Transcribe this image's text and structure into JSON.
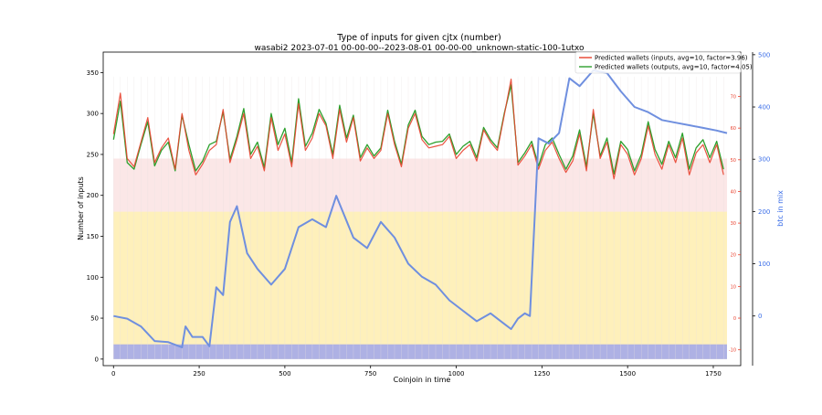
{
  "chart_data": {
    "type": "line",
    "title": "Type of inputs for given cjtx (number)",
    "subtitle": "wasabi2 2023-07-01 00-00-00--2023-08-01 00-00-00_unknown-static-100-1utxo",
    "xlabel": "Coinjoin in time",
    "ylabel": "Number of inputs",
    "y2label": "btc in mix",
    "xlim": [
      -30,
      1830
    ],
    "ylim": [
      -8,
      375
    ],
    "y2lim": [
      -95,
      505
    ],
    "y3lim": [
      -15,
      84
    ],
    "xticks": [
      0,
      250,
      500,
      750,
      1000,
      1250,
      1500,
      1750
    ],
    "yticks": [
      0,
      50,
      100,
      150,
      200,
      250,
      300,
      350
    ],
    "y2ticks": [
      0,
      100,
      200,
      300,
      400,
      500
    ],
    "y3ticks": [
      -10,
      0,
      10,
      20,
      30,
      40,
      50,
      60,
      70
    ],
    "legend_position": "upper right",
    "colors": {
      "inputs": "#e8412e",
      "outputs": "#2ca02c",
      "btc": "#6f8fdf",
      "yellow_fill": "#fff3b0",
      "pink_fill": "#f6c9c9",
      "blue_fill": "#8c96f5",
      "right_axis_1": "#3b6ee8",
      "right_axis_2": "#e8412e"
    },
    "series": [
      {
        "name": "Predicted wallets (inputs, avg=10, factor=3.96)",
        "axis": "left",
        "x": [
          0,
          20,
          40,
          60,
          80,
          100,
          120,
          140,
          160,
          180,
          200,
          220,
          240,
          260,
          280,
          300,
          320,
          340,
          360,
          380,
          400,
          420,
          440,
          460,
          480,
          500,
          520,
          540,
          560,
          580,
          600,
          620,
          640,
          660,
          680,
          700,
          720,
          740,
          760,
          780,
          800,
          820,
          840,
          860,
          880,
          900,
          920,
          940,
          960,
          980,
          1000,
          1020,
          1040,
          1060,
          1080,
          1100,
          1120,
          1140,
          1160,
          1180,
          1200,
          1220,
          1240,
          1260,
          1280,
          1300,
          1320,
          1340,
          1360,
          1380,
          1400,
          1420,
          1440,
          1460,
          1480,
          1500,
          1520,
          1540,
          1560,
          1580,
          1600,
          1620,
          1640,
          1660,
          1680,
          1700,
          1720,
          1740,
          1760,
          1780
        ],
        "y": [
          275,
          325,
          245,
          235,
          265,
          295,
          240,
          258,
          270,
          232,
          300,
          255,
          225,
          238,
          255,
          262,
          305,
          240,
          268,
          300,
          245,
          260,
          230,
          295,
          255,
          275,
          235,
          312,
          255,
          270,
          300,
          285,
          245,
          305,
          265,
          295,
          242,
          258,
          245,
          255,
          300,
          262,
          235,
          282,
          300,
          268,
          258,
          260,
          262,
          272,
          245,
          255,
          262,
          242,
          280,
          265,
          255,
          298,
          342,
          237,
          248,
          262,
          232,
          255,
          265,
          245,
          228,
          242,
          275,
          230,
          305,
          245,
          265,
          220,
          262,
          250,
          225,
          245,
          285,
          250,
          232,
          262,
          240,
          270,
          225,
          252,
          262,
          240,
          262,
          225
        ]
      },
      {
        "name": "Predicted wallets (outputs, avg=10, factor=4.05)",
        "axis": "left",
        "x": [
          0,
          20,
          40,
          60,
          80,
          100,
          120,
          140,
          160,
          180,
          200,
          220,
          240,
          260,
          280,
          300,
          320,
          340,
          360,
          380,
          400,
          420,
          440,
          460,
          480,
          500,
          520,
          540,
          560,
          580,
          600,
          620,
          640,
          660,
          680,
          700,
          720,
          740,
          760,
          780,
          800,
          820,
          840,
          860,
          880,
          900,
          920,
          940,
          960,
          980,
          1000,
          1020,
          1040,
          1060,
          1080,
          1100,
          1120,
          1140,
          1160,
          1180,
          1200,
          1220,
          1240,
          1260,
          1280,
          1300,
          1320,
          1340,
          1360,
          1380,
          1400,
          1420,
          1440,
          1460,
          1480,
          1500,
          1520,
          1540,
          1560,
          1580,
          1600,
          1620,
          1640,
          1660,
          1680,
          1700,
          1720,
          1740,
          1760,
          1780
        ],
        "y": [
          268,
          315,
          240,
          232,
          262,
          290,
          236,
          255,
          265,
          230,
          298,
          262,
          230,
          242,
          262,
          266,
          302,
          244,
          272,
          306,
          250,
          265,
          234,
          300,
          262,
          282,
          240,
          318,
          260,
          276,
          305,
          288,
          250,
          310,
          270,
          298,
          246,
          262,
          248,
          258,
          304,
          266,
          238,
          286,
          304,
          272,
          262,
          265,
          266,
          275,
          250,
          260,
          266,
          246,
          283,
          268,
          258,
          300,
          335,
          240,
          252,
          266,
          236,
          262,
          270,
          250,
          232,
          248,
          280,
          235,
          300,
          248,
          270,
          226,
          266,
          256,
          230,
          250,
          290,
          256,
          238,
          266,
          246,
          276,
          232,
          258,
          268,
          246,
          266,
          232
        ]
      },
      {
        "name": "btc in mix",
        "axis": "right",
        "x": [
          0,
          40,
          80,
          120,
          160,
          200,
          210,
          230,
          260,
          280,
          300,
          320,
          340,
          360,
          390,
          420,
          460,
          500,
          540,
          580,
          620,
          650,
          700,
          740,
          780,
          820,
          860,
          900,
          940,
          980,
          1020,
          1060,
          1100,
          1140,
          1160,
          1180,
          1200,
          1215,
          1240,
          1270,
          1300,
          1330,
          1360,
          1400,
          1440,
          1480,
          1520,
          1560,
          1600,
          1640,
          1680,
          1720,
          1760,
          1790
        ],
        "y": [
          0,
          -5,
          -20,
          -48,
          -50,
          -60,
          -20,
          -40,
          -40,
          -58,
          55,
          40,
          180,
          210,
          120,
          90,
          60,
          90,
          170,
          185,
          170,
          230,
          150,
          130,
          180,
          150,
          100,
          75,
          60,
          30,
          10,
          -10,
          5,
          -15,
          -25,
          -5,
          5,
          0,
          340,
          330,
          350,
          455,
          440,
          470,
          465,
          430,
          400,
          390,
          375,
          370,
          365,
          360,
          355,
          350
        ]
      }
    ]
  }
}
